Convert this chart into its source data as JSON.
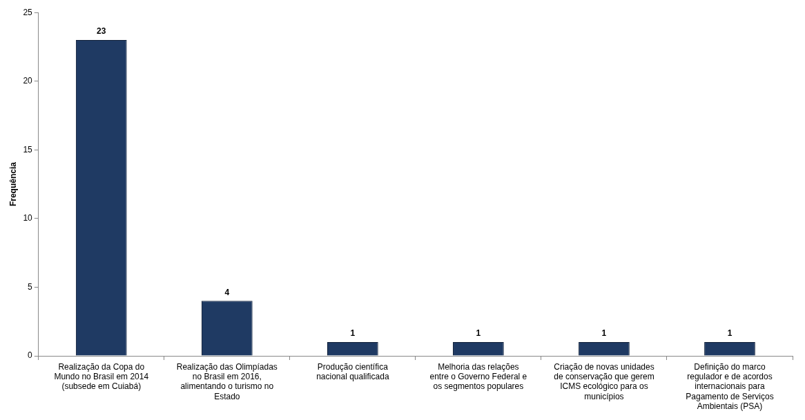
{
  "chart_data": {
    "type": "bar",
    "ylabel": "Frequência",
    "categories": [
      "Realização da Copa do Mundo no Brasil em 2014 (subsede em Cuiabá)",
      "Realização das Olimpíadas no Brasil em 2016, alimentando o turismo no Estado",
      "Produção científica nacional qualificada",
      "Melhoria das relações entre o Governo Federal e os segmentos populares",
      "Criação de novas unidades de conservação que gerem ICMS ecológico para os municípios",
      "Definição do marco regulador e de acordos internacionais para Pagamento de Serviços Ambientais (PSA)"
    ],
    "values": [
      23,
      4,
      1,
      1,
      1,
      1
    ],
    "color": "#1f3a63",
    "ylim": [
      0,
      25
    ],
    "yticks": [
      0,
      5,
      10,
      15,
      20,
      25
    ],
    "grid": false,
    "data_labels": true
  }
}
